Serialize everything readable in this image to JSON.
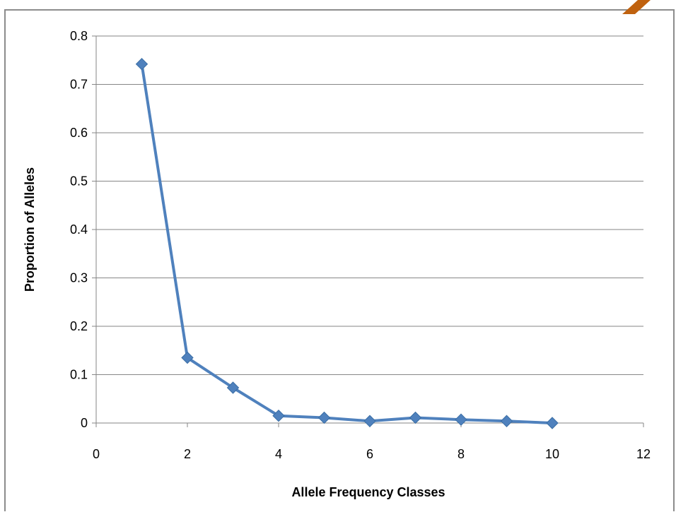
{
  "chart_data": {
    "type": "scatter",
    "title": "",
    "xlabel": "Allele Frequency Classes",
    "ylabel": "Proportion of Alleles",
    "xlim": [
      0,
      12
    ],
    "ylim": [
      0,
      0.8
    ],
    "xticks": [
      "0",
      "2",
      "4",
      "6",
      "8",
      "10",
      "12"
    ],
    "yticks": [
      "0",
      "0.1",
      "0.2",
      "0.3",
      "0.4",
      "0.5",
      "0.6",
      "0.7",
      "0.8"
    ],
    "grid": "horizontal",
    "legend": "none",
    "marker": "diamond",
    "line_style": "straight-lines-with-markers",
    "series": [
      {
        "color": "#4f81bd",
        "x": [
          1,
          2,
          3,
          4,
          5,
          6,
          7,
          8,
          9,
          10
        ],
        "y": [
          0.742,
          0.135,
          0.073,
          0.015,
          0.011,
          0.004,
          0.011,
          0.007,
          0.004,
          0.0
        ]
      }
    ]
  }
}
